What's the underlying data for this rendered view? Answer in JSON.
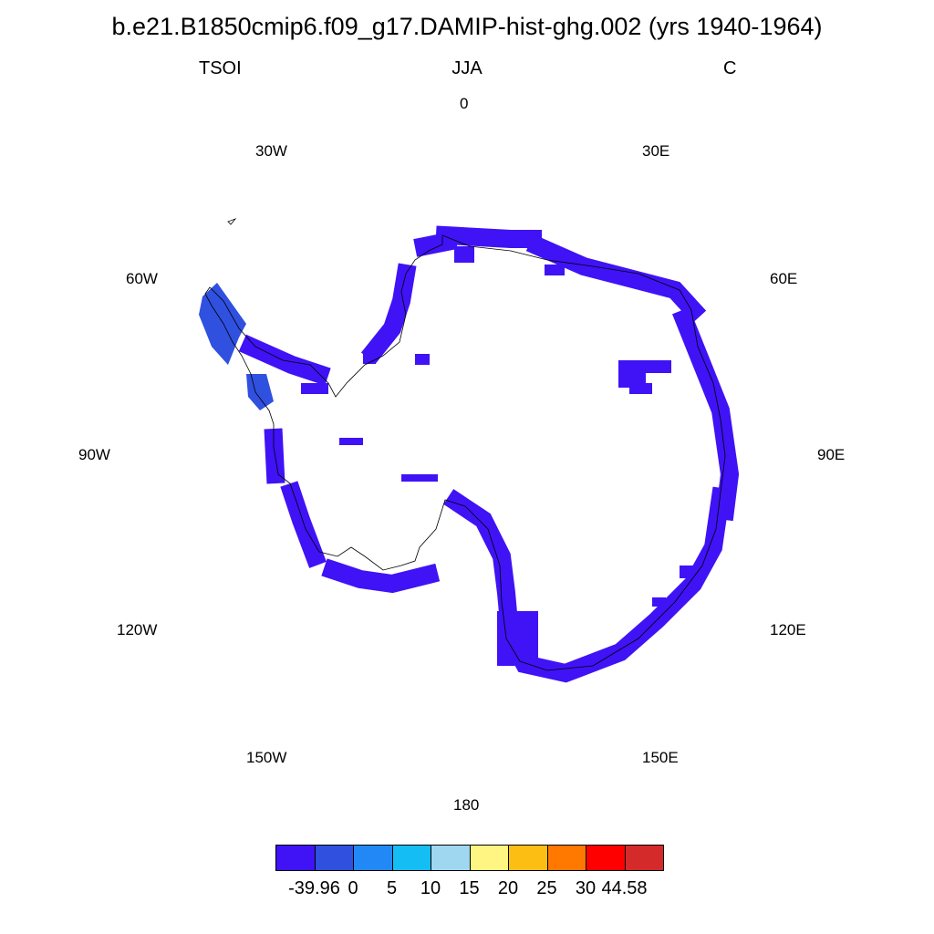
{
  "header": {
    "title": "b.e21.B1850cmip6.f09_g17.DAMIP-hist-ghg.002 (yrs 1940-1964)",
    "left": "TSOI",
    "center": "JJA",
    "right": "C"
  },
  "longitude_labels": [
    "0",
    "30E",
    "60E",
    "90E",
    "120E",
    "150E",
    "180",
    "150W",
    "120W",
    "90W",
    "60W",
    "30W"
  ],
  "colorbar": {
    "colors": [
      "#3f13f5",
      "#3050e0",
      "#2288f5",
      "#14bef5",
      "#a0d7f0",
      "#fff582",
      "#fdbe14",
      "#ff7800",
      "#ff0000",
      "#d42a2a"
    ],
    "labels": [
      "-39.96",
      "0",
      "5",
      "10",
      "15",
      "20",
      "25",
      "30",
      "44.58"
    ]
  },
  "map": {
    "projection": "south polar stereographic",
    "variable_fill_color": "#3f13f5",
    "peninsula_fill_color": "#3050e0",
    "coastline_color": "#000000"
  }
}
